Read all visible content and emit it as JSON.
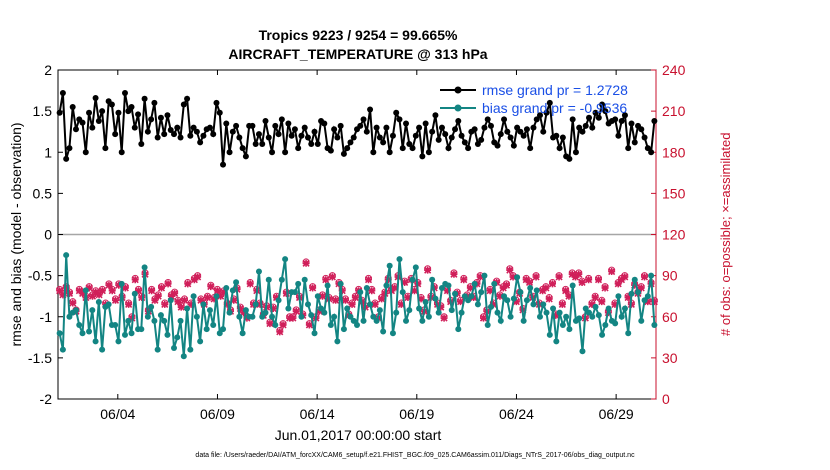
{
  "chart_data": {
    "type": "line",
    "title": "Tropics 9223 / 9254 = 99.665%",
    "subtitle": "AIRCRAFT_TEMPERATURE @ 313 hPa",
    "xlabel": "Jun.01,2017 00:00:00 start",
    "ylabel_left": "rmse and bias (model - observation)",
    "ylabel_right": "# of obs: o=possible; ×=assimilated",
    "footer": "data file: /Users/raeder/DAI/ATM_forcXX/CAM6_setup/f.e21.FHIST_BGC.f09_025.CAM6assim.011/Diags_NTrS_2017-06/obs_diag_output.nc",
    "x_ticks": [
      "06/04",
      "06/09",
      "06/14",
      "06/19",
      "06/24",
      "06/29"
    ],
    "x_tick_days": [
      4,
      9,
      14,
      19,
      24,
      29
    ],
    "x_range_days": [
      1,
      31
    ],
    "ylim_left": [
      -2,
      2
    ],
    "y_ticks_left": [
      "-2",
      "-1.5",
      "-1",
      "-0.5",
      "0",
      "0.5",
      "1",
      "1.5",
      "2"
    ],
    "ylim_right": [
      0,
      240
    ],
    "y_ticks_right": [
      "0",
      "30",
      "60",
      "90",
      "120",
      "150",
      "180",
      "210",
      "240"
    ],
    "colors": {
      "rmse": "#000000",
      "bias": "#138583",
      "obs": "#d01f5a",
      "zero_line": "#a6a6a6",
      "right_axis": "#c8102e",
      "legend_text": "#1a4fe6"
    },
    "legend": {
      "location": "top-right",
      "rmse_label": "rmse grand pr = 1.2728",
      "bias_label": "bias grand pr = -0.9536"
    },
    "series": [
      {
        "name": "rmse",
        "values": [
          1.48,
          1.72,
          0.92,
          1.05,
          1.55,
          1.28,
          1.4,
          1.36,
          1.0,
          1.48,
          1.3,
          1.66,
          1.38,
          1.5,
          1.05,
          1.62,
          1.58,
          1.22,
          1.48,
          1.0,
          1.72,
          1.5,
          1.55,
          1.3,
          1.46,
          1.1,
          1.65,
          1.25,
          1.4,
          1.6,
          1.18,
          1.42,
          1.22,
          1.45,
          1.27,
          1.22,
          1.3,
          1.18,
          1.58,
          1.65,
          1.2,
          1.3,
          1.25,
          1.12,
          1.2,
          1.28,
          1.3,
          1.22,
          1.6,
          1.48,
          0.85,
          1.35,
          1.0,
          1.25,
          1.32,
          1.18,
          1.05,
          0.95,
          1.32,
          1.32,
          1.1,
          1.22,
          1.1,
          1.38,
          1.18,
          1.0,
          1.32,
          1.22,
          1.4,
          1.0,
          1.35,
          1.2,
          1.28,
          1.05,
          1.2,
          1.3,
          1.18,
          1.1,
          1.25,
          1.1,
          1.38,
          1.35,
          1.05,
          1.02,
          1.28,
          1.18,
          1.32,
          0.98,
          1.05,
          1.12,
          1.18,
          1.28,
          1.32,
          1.4,
          1.25,
          1.52,
          1.0,
          1.3,
          1.18,
          1.12,
          1.3,
          1.0,
          1.2,
          1.48,
          1.4,
          1.05,
          1.35,
          1.1,
          1.05,
          1.2,
          1.3,
          0.95,
          1.35,
          1.0,
          1.25,
          1.45,
          1.15,
          1.3,
          1.22,
          1.05,
          1.18,
          1.28,
          1.38,
          1.2,
          1.12,
          1.05,
          1.25,
          1.28,
          1.1,
          1.15,
          1.3,
          1.4,
          1.32,
          1.12,
          1.08,
          1.22,
          1.4,
          1.25,
          1.18,
          1.08,
          1.3,
          1.25,
          1.2,
          1.28,
          1.05,
          1.3,
          1.4,
          1.45,
          1.25,
          1.48,
          1.6,
          1.18,
          1.2,
          1.05,
          1.18,
          0.95,
          0.92,
          1.4,
          1.0,
          1.3,
          1.25,
          1.32,
          1.42,
          1.3,
          1.48,
          1.42,
          1.58,
          1.5,
          1.35,
          1.38,
          1.4,
          1.2,
          1.38,
          1.45,
          1.05,
          1.35,
          1.12,
          1.32,
          1.28,
          1.18,
          1.05,
          1.0,
          1.38
        ],
        "y_axis": "left"
      },
      {
        "name": "bias",
        "values": [
          -1.2,
          -1.4,
          -0.25,
          -1.0,
          -0.95,
          -0.92,
          -1.1,
          -1.2,
          -0.68,
          -1.18,
          -0.92,
          -1.3,
          -0.82,
          -1.4,
          -0.88,
          -0.85,
          -1.1,
          -1.1,
          -1.3,
          -0.6,
          -1.22,
          -1.05,
          -1.2,
          -0.72,
          -1.15,
          -1.15,
          -0.4,
          -1.0,
          -0.88,
          -1.05,
          -1.4,
          -0.98,
          -1.05,
          -1.22,
          -0.8,
          -1.38,
          -1.25,
          -1.05,
          -1.48,
          -0.9,
          -1.4,
          -0.75,
          -1.0,
          -1.3,
          -0.85,
          -1.15,
          -0.92,
          -1.1,
          -0.75,
          -1.2,
          -1.15,
          -0.65,
          -0.95,
          -0.68,
          -0.58,
          -1.0,
          -1.2,
          -0.92,
          -1.0,
          -1.0,
          -0.85,
          -0.45,
          -1.0,
          -0.95,
          -0.55,
          -1.0,
          -1.1,
          -0.8,
          -0.55,
          -0.3,
          -0.9,
          -0.7,
          -0.7,
          -0.6,
          -1.0,
          -0.55,
          -0.85,
          -0.98,
          -1.2,
          -0.75,
          -0.9,
          -0.95,
          -0.62,
          -1.1,
          -1.0,
          -1.3,
          -0.6,
          -1.15,
          -0.9,
          -1.0,
          -1.05,
          -1.1,
          -0.7,
          -1.05,
          -0.65,
          -0.85,
          -1.0,
          -1.05,
          -0.92,
          -1.18,
          -0.62,
          -0.38,
          -1.2,
          -0.95,
          -0.3,
          -0.7,
          -1.05,
          -0.92,
          -0.55,
          -0.4,
          -0.9,
          -1.05,
          -0.82,
          -1.0,
          -0.55,
          -0.78,
          -0.95,
          -0.65,
          -0.6,
          -0.62,
          -0.92,
          -0.72,
          -1.15,
          -0.95,
          -0.75,
          -0.8,
          -0.75,
          -0.6,
          -0.85,
          -0.7,
          -0.5,
          -1.1,
          -0.88,
          -0.6,
          -0.95,
          -1.05,
          -0.75,
          -0.8,
          -1.0,
          -0.78,
          -0.52,
          -0.7,
          -1.05,
          -0.8,
          -0.65,
          -0.85,
          -0.68,
          -1.0,
          -0.85,
          -0.95,
          -1.22,
          -0.9,
          -1.3,
          -0.95,
          -1.1,
          -1.0,
          -1.15,
          -0.62,
          -1.05,
          -1.02,
          -1.42,
          -0.9,
          -0.95,
          -1.0,
          -0.88,
          -0.98,
          -1.22,
          -1.1,
          -0.9,
          -1.05,
          -1.08,
          -0.75,
          -1.0,
          -0.9,
          -1.2,
          -0.72,
          -0.55,
          -0.7,
          -1.05,
          -0.8,
          -0.75,
          -0.5,
          -1.1
        ],
        "y_axis": "left"
      },
      {
        "name": "obs_possible",
        "marker": "o",
        "values": [
          80,
          77,
          82,
          78,
          71,
          65,
          80,
          78,
          75,
          82,
          76,
          79,
          77,
          80,
          70,
          84,
          80,
          73,
          84,
          75,
          82,
          70,
          60,
          88,
          80,
          75,
          92,
          65,
          80,
          73,
          76,
          82,
          70,
          85,
          76,
          78,
          72,
          68,
          73,
          85,
          70,
          88,
          90,
          73,
          70,
          75,
          83,
          74,
          80,
          76,
          79,
          70,
          65,
          73,
          81,
          67,
          64,
          60,
          85,
          70,
          80,
          70,
          62,
          68,
          56,
          67,
          75,
          50,
          55,
          78,
          60,
          60,
          65,
          75,
          62,
          100,
          55,
          82,
          60,
          65,
          76,
          88,
          74,
          90,
          73,
          85,
          80,
          73,
          62,
          70,
          75,
          80,
          72,
          68,
          88,
          80,
          70,
          60,
          74,
          78,
          88,
          80,
          82,
          90,
          70,
          86,
          75,
          88,
          80,
          85,
          74,
          65,
          95,
          75,
          82,
          70,
          68,
          60,
          80,
          72,
          92,
          78,
          72,
          88,
          76,
          82,
          75,
          85,
          90,
          60,
          65,
          80,
          70,
          86,
          76,
          82,
          84,
          95,
          90,
          72,
          78,
          66,
          88,
          86,
          75,
          90,
          70,
          80,
          82,
          74,
          85,
          62,
          90,
          70,
          80,
          76,
          92,
          90,
          92,
          86,
          60,
          88,
          70,
          75,
          88,
          72,
          82,
          64,
          94,
          70,
          85,
          88,
          90,
          75,
          70,
          84,
          78,
          82,
          90,
          72,
          85,
          72
        ],
        "y_axis": "right"
      },
      {
        "name": "obs_assimilated",
        "marker": "x",
        "values": [
          79,
          76,
          81,
          77,
          70,
          64,
          79,
          77,
          74,
          81,
          75,
          78,
          76,
          79,
          69,
          83,
          79,
          72,
          83,
          74,
          81,
          69,
          59,
          87,
          79,
          74,
          91,
          64,
          79,
          72,
          75,
          81,
          69,
          84,
          75,
          77,
          71,
          67,
          72,
          84,
          69,
          87,
          89,
          72,
          69,
          74,
          82,
          73,
          79,
          75,
          78,
          69,
          64,
          72,
          80,
          66,
          63,
          59,
          84,
          69,
          79,
          69,
          61,
          67,
          55,
          66,
          74,
          49,
          54,
          77,
          59,
          59,
          64,
          74,
          61,
          99,
          54,
          81,
          59,
          64,
          75,
          87,
          73,
          89,
          72,
          84,
          79,
          72,
          61,
          69,
          74,
          79,
          71,
          67,
          87,
          79,
          69,
          59,
          73,
          77,
          87,
          79,
          81,
          89,
          69,
          85,
          74,
          87,
          79,
          84,
          73,
          64,
          94,
          74,
          81,
          69,
          67,
          59,
          79,
          71,
          91,
          77,
          71,
          87,
          75,
          81,
          74,
          84,
          89,
          59,
          64,
          79,
          69,
          85,
          75,
          81,
          83,
          94,
          89,
          71,
          77,
          65,
          87,
          85,
          74,
          89,
          69,
          79,
          81,
          73,
          84,
          61,
          89,
          69,
          79,
          75,
          91,
          89,
          91,
          85,
          59,
          87,
          69,
          74,
          87,
          71,
          81,
          63,
          93,
          69,
          84,
          87,
          89,
          74,
          69,
          83,
          77,
          81,
          89,
          71,
          84,
          71
        ],
        "y_axis": "right"
      }
    ]
  }
}
